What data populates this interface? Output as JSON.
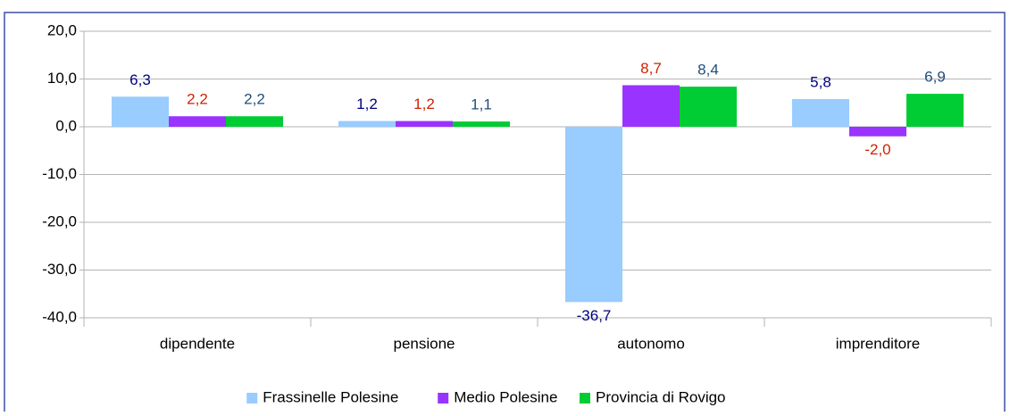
{
  "chart_data": {
    "type": "bar",
    "categories": [
      "dipendente",
      "pensione",
      "autonomo",
      "imprenditore"
    ],
    "series": [
      {
        "name": "Frassinelle Polesine",
        "color": "#99ccff",
        "label_color": "#000080",
        "values": [
          6.3,
          1.2,
          -36.7,
          5.8
        ],
        "value_labels": [
          "6,3",
          "1,2",
          "-36,7",
          "5,8"
        ]
      },
      {
        "name": "Medio Polesine",
        "color": "#9933ff",
        "label_color": "#cc2200",
        "values": [
          2.2,
          1.2,
          8.7,
          -2.0
        ],
        "value_labels": [
          "2,2",
          "1,2",
          "8,7",
          "-2,0"
        ]
      },
      {
        "name": "Provincia di Rovigo",
        "color": "#00cc33",
        "label_color": "#1f4e79",
        "values": [
          2.2,
          1.1,
          8.4,
          6.9
        ],
        "value_labels": [
          "2,2",
          "1,1",
          "8,4",
          "6,9"
        ]
      }
    ],
    "ylim": [
      -40,
      20
    ],
    "yticks": [
      {
        "value": -40,
        "label": "-40,0"
      },
      {
        "value": -30,
        "label": "-30,0"
      },
      {
        "value": -20,
        "label": "-20,0"
      },
      {
        "value": -10,
        "label": "-10,0"
      },
      {
        "value": 0,
        "label": "0,0"
      },
      {
        "value": 10,
        "label": "10,0"
      },
      {
        "value": 20,
        "label": "20,0"
      }
    ],
    "grid": true,
    "legend": "bottom"
  }
}
